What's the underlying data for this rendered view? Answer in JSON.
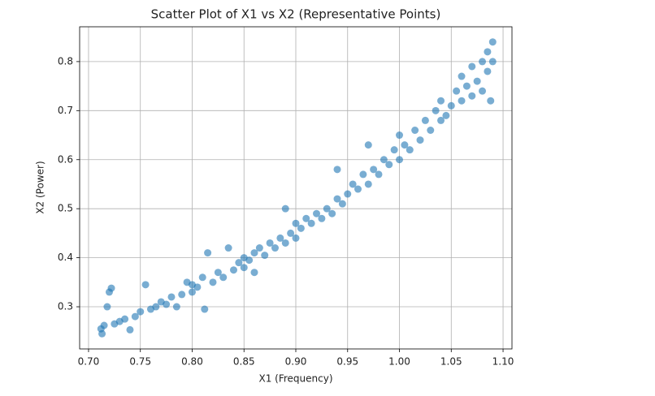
{
  "chart_data": {
    "type": "scatter",
    "title": "Scatter Plot of X1 vs X2 (Representative Points)",
    "x_label": "X1 (Frequency)",
    "y_label": "X2 (Power)",
    "color": "#1f77b4",
    "alpha": 0.6,
    "grid": true,
    "xlim": [
      0.6914,
      1.1086
    ],
    "ylim": [
      0.214,
      0.871
    ],
    "xticks": [
      {
        "value": 0.7,
        "label": "0.70"
      },
      {
        "value": 0.75,
        "label": "0.75"
      },
      {
        "value": 0.8,
        "label": "0.80"
      },
      {
        "value": 0.85,
        "label": "0.85"
      },
      {
        "value": 0.9,
        "label": "0.90"
      },
      {
        "value": 0.95,
        "label": "0.95"
      },
      {
        "value": 1.0,
        "label": "1.00"
      },
      {
        "value": 1.05,
        "label": "1.05"
      },
      {
        "value": 1.1,
        "label": "1.10"
      }
    ],
    "yticks": [
      0.3,
      0.4,
      0.5,
      0.6,
      0.7,
      0.8
    ],
    "x": [
      0.712,
      0.713,
      0.715,
      0.718,
      0.72,
      0.722,
      0.725,
      0.73,
      0.735,
      0.74,
      0.745,
      0.75,
      0.755,
      0.76,
      0.765,
      0.77,
      0.775,
      0.78,
      0.785,
      0.79,
      0.795,
      0.8,
      0.8,
      0.805,
      0.81,
      0.812,
      0.815,
      0.82,
      0.825,
      0.83,
      0.835,
      0.84,
      0.845,
      0.85,
      0.85,
      0.855,
      0.86,
      0.86,
      0.865,
      0.87,
      0.875,
      0.88,
      0.885,
      0.89,
      0.89,
      0.895,
      0.9,
      0.9,
      0.905,
      0.91,
      0.915,
      0.92,
      0.925,
      0.93,
      0.935,
      0.94,
      0.94,
      0.945,
      0.95,
      0.955,
      0.96,
      0.965,
      0.97,
      0.97,
      0.975,
      0.98,
      0.985,
      0.99,
      0.995,
      1.0,
      1.0,
      1.005,
      1.01,
      1.015,
      1.02,
      1.025,
      1.03,
      1.035,
      1.04,
      1.04,
      1.045,
      1.05,
      1.055,
      1.06,
      1.06,
      1.065,
      1.07,
      1.07,
      1.075,
      1.08,
      1.08,
      1.085,
      1.085,
      1.088,
      1.09,
      1.09
    ],
    "y": [
      0.255,
      0.245,
      0.262,
      0.3,
      0.33,
      0.338,
      0.265,
      0.27,
      0.275,
      0.253,
      0.28,
      0.29,
      0.345,
      0.295,
      0.3,
      0.31,
      0.305,
      0.32,
      0.3,
      0.325,
      0.35,
      0.33,
      0.345,
      0.34,
      0.36,
      0.295,
      0.41,
      0.35,
      0.37,
      0.36,
      0.42,
      0.375,
      0.39,
      0.38,
      0.4,
      0.395,
      0.41,
      0.37,
      0.42,
      0.405,
      0.43,
      0.42,
      0.44,
      0.43,
      0.5,
      0.45,
      0.44,
      0.47,
      0.46,
      0.48,
      0.47,
      0.49,
      0.48,
      0.5,
      0.49,
      0.52,
      0.58,
      0.51,
      0.53,
      0.55,
      0.54,
      0.57,
      0.55,
      0.63,
      0.58,
      0.57,
      0.6,
      0.59,
      0.62,
      0.6,
      0.65,
      0.63,
      0.62,
      0.66,
      0.64,
      0.68,
      0.66,
      0.7,
      0.68,
      0.72,
      0.69,
      0.71,
      0.74,
      0.72,
      0.77,
      0.75,
      0.73,
      0.79,
      0.76,
      0.74,
      0.8,
      0.78,
      0.82,
      0.72,
      0.84,
      0.8
    ]
  }
}
